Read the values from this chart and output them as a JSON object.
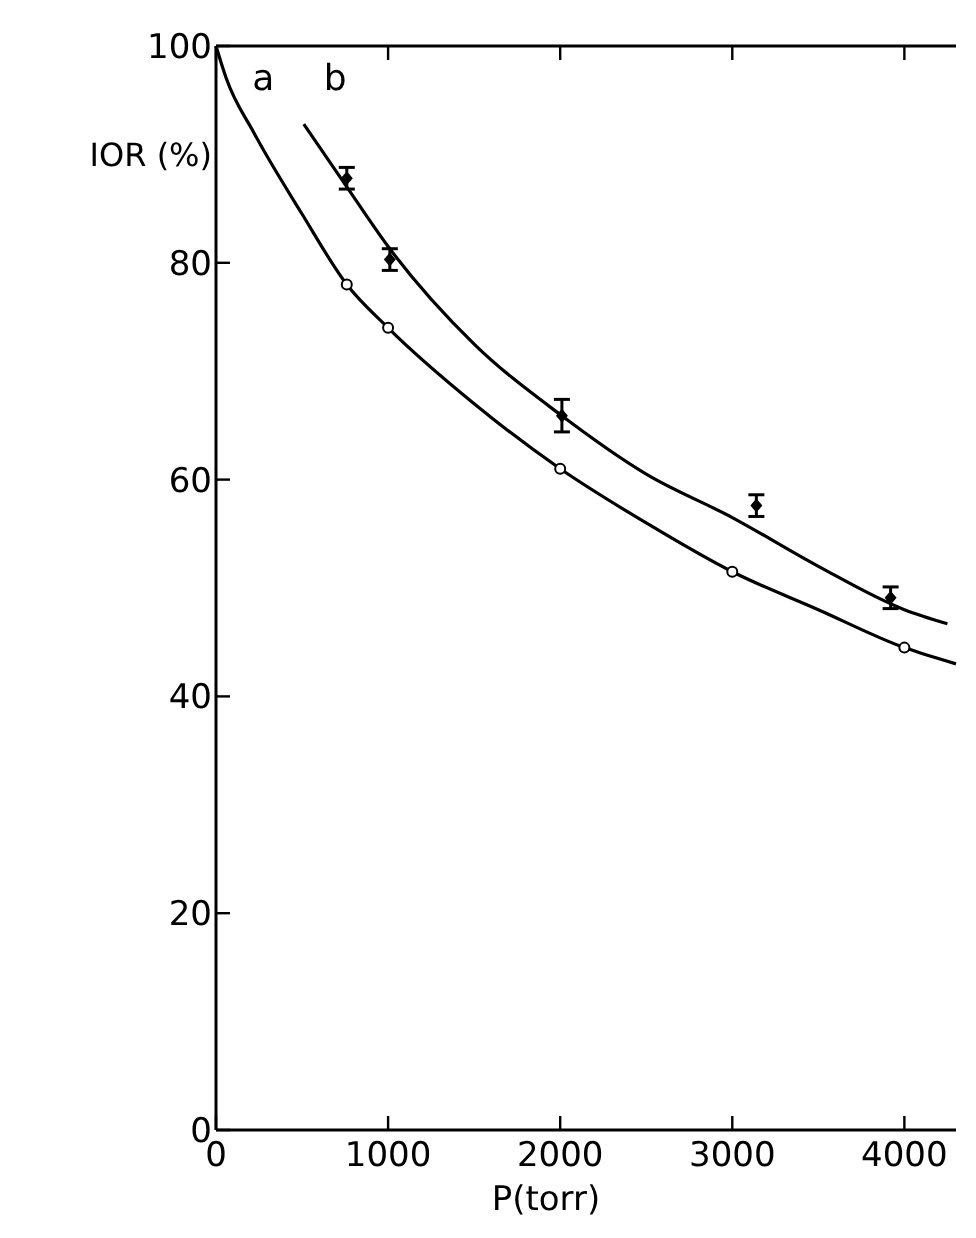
{
  "chart_data": {
    "type": "scatter",
    "xlabel": "P(torr)",
    "ylabel": "IOR (%)",
    "xlim": [
      0,
      4300
    ],
    "ylim": [
      0,
      100
    ],
    "xticks": [
      0,
      1000,
      2000,
      3000,
      4000
    ],
    "yticks": [
      0,
      20,
      40,
      60,
      80,
      100
    ],
    "grid": false,
    "series": [
      {
        "type": "line",
        "name": "a",
        "color": "#000000",
        "x": [
          0,
          60,
          220,
          500,
          760,
          1000,
          1500,
          2000,
          2500,
          3000,
          3500,
          4000,
          4300
        ],
        "values": [
          100,
          97,
          92,
          84.5,
          78,
          74,
          67,
          61,
          56,
          51.5,
          48,
          44.5,
          43
        ]
      },
      {
        "type": "line",
        "name": "b",
        "color": "#000000",
        "x": [
          510,
          760,
          1000,
          1500,
          2000,
          2500,
          3000,
          3500,
          4000,
          4250
        ],
        "values": [
          92.8,
          87,
          81.5,
          72.5,
          66,
          60.5,
          56.5,
          52,
          48,
          46.7
        ]
      },
      {
        "marker": "circle",
        "color": "#000000",
        "x": [
          760,
          1000,
          2000,
          3000,
          4000
        ],
        "values": [
          78,
          74,
          61,
          51.5,
          44.5
        ]
      },
      {
        "marker": "diamond",
        "color": "#000000",
        "x": [
          760,
          1010,
          2010,
          3140,
          3920
        ],
        "values": [
          87.8,
          80.3,
          65.9,
          57.6,
          49.1
        ],
        "errors": [
          1,
          1,
          1.5,
          1,
          1
        ]
      }
    ]
  }
}
